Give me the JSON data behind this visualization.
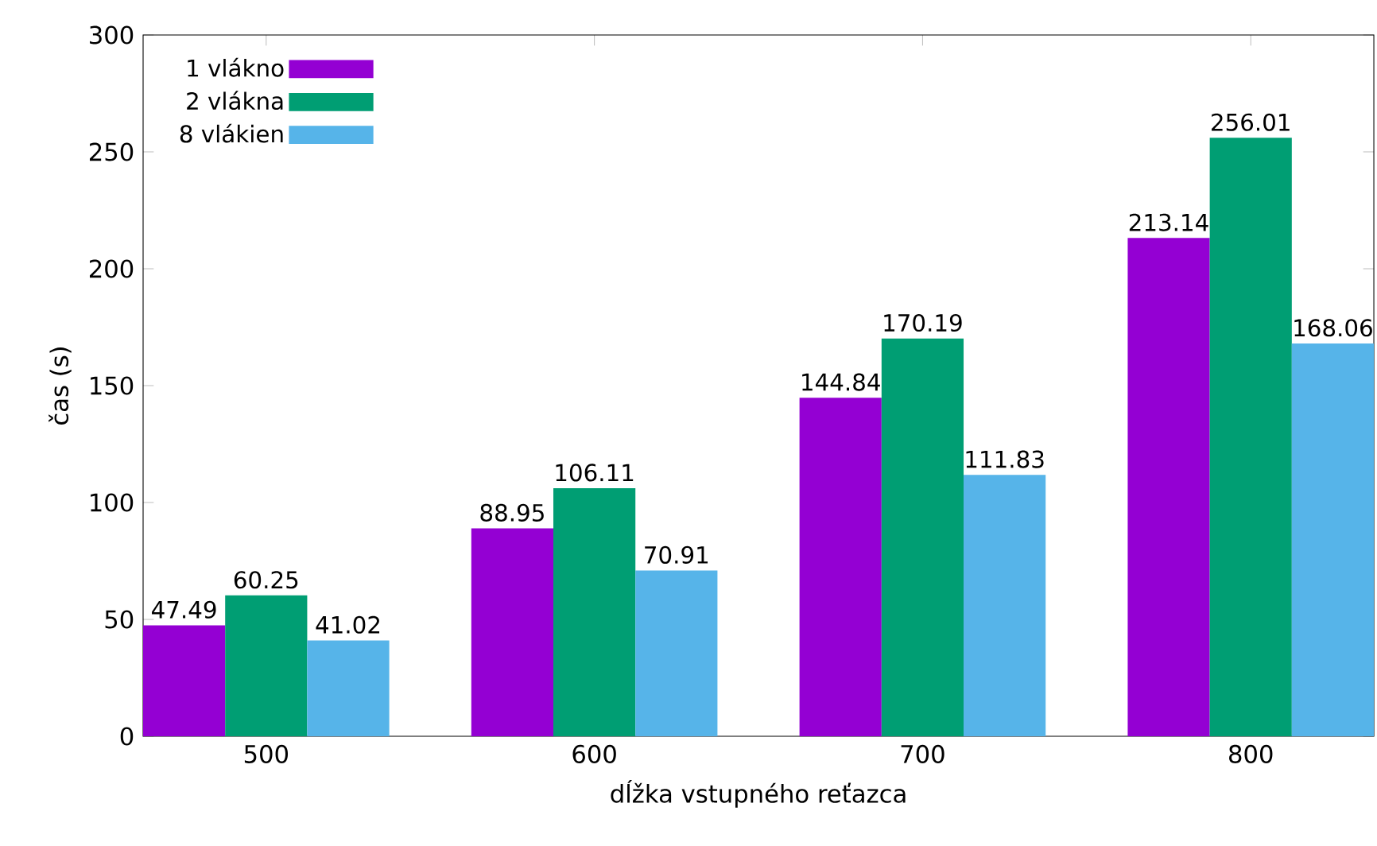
{
  "chart_data": {
    "type": "bar",
    "xlabel": "dĺžka vstupného reťazca",
    "ylabel": "čas (s)",
    "categories": [
      "500",
      "600",
      "700",
      "800"
    ],
    "series": [
      {
        "name": "1 vlákno",
        "color": "#9400d3",
        "values": [
          47.49,
          88.95,
          144.84,
          213.14
        ]
      },
      {
        "name": "2 vlákna",
        "color": "#009e73",
        "values": [
          60.25,
          106.11,
          170.19,
          256.01
        ]
      },
      {
        "name": "8 vlákien",
        "color": "#56b4e9",
        "values": [
          41.02,
          70.91,
          111.83,
          168.06
        ]
      }
    ],
    "ylim": [
      0,
      300
    ],
    "yticks": [
      0,
      50,
      100,
      150,
      200,
      250,
      300
    ],
    "data_labels": true,
    "legend": "top left",
    "grid": false
  }
}
